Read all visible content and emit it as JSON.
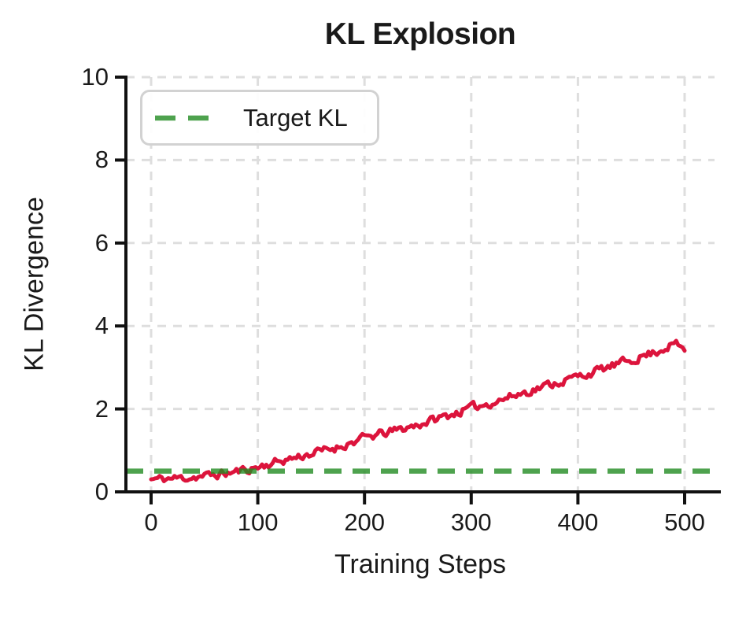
{
  "title": "KL Explosion",
  "legend": {
    "position": "upper left",
    "entries": [
      {
        "label": "Target KL",
        "style": "dashed",
        "color": "#228B22"
      }
    ]
  },
  "colors": {
    "kl_curve": "#DC143C",
    "target_line": "#228B22",
    "grid": "#dedede",
    "axis": "#111111",
    "background": "#ffffff",
    "legend_border": "#d2d2d2"
  },
  "chart_data": {
    "type": "line",
    "title": "KL Explosion",
    "xlabel": "Training Steps",
    "ylabel": "KL Divergence",
    "xlim": [
      0,
      500
    ],
    "ylim": [
      0,
      10
    ],
    "x_ticks": [
      0,
      100,
      200,
      300,
      400,
      500
    ],
    "y_ticks": [
      0,
      2,
      4,
      6,
      8,
      10
    ],
    "grid": "dashed",
    "legend_position": "upper left",
    "series": [
      {
        "name": "KL Divergence",
        "kind": "noisy-line",
        "color": "#DC143C",
        "linewidth": 5,
        "anchors_t": [
          0,
          25,
          50,
          75,
          100,
          125,
          150,
          175,
          200,
          225,
          250,
          275,
          300,
          325,
          350,
          375,
          400,
          425,
          450,
          475,
          490,
          500
        ],
        "anchors_kl": [
          0.3,
          0.33,
          0.38,
          0.46,
          0.6,
          0.77,
          0.92,
          1.08,
          1.3,
          1.45,
          1.62,
          1.82,
          2.02,
          2.2,
          2.4,
          2.6,
          2.78,
          2.97,
          3.18,
          3.4,
          3.58,
          3.44
        ],
        "noise_amplitude": 0.09,
        "noise_seed": 11,
        "sample_step": 2
      },
      {
        "name": "Target KL",
        "kind": "hline",
        "value": 0.5,
        "color": "#228B22",
        "opacity": 0.8,
        "linewidth": 6.5,
        "dash": "22 14"
      }
    ]
  }
}
